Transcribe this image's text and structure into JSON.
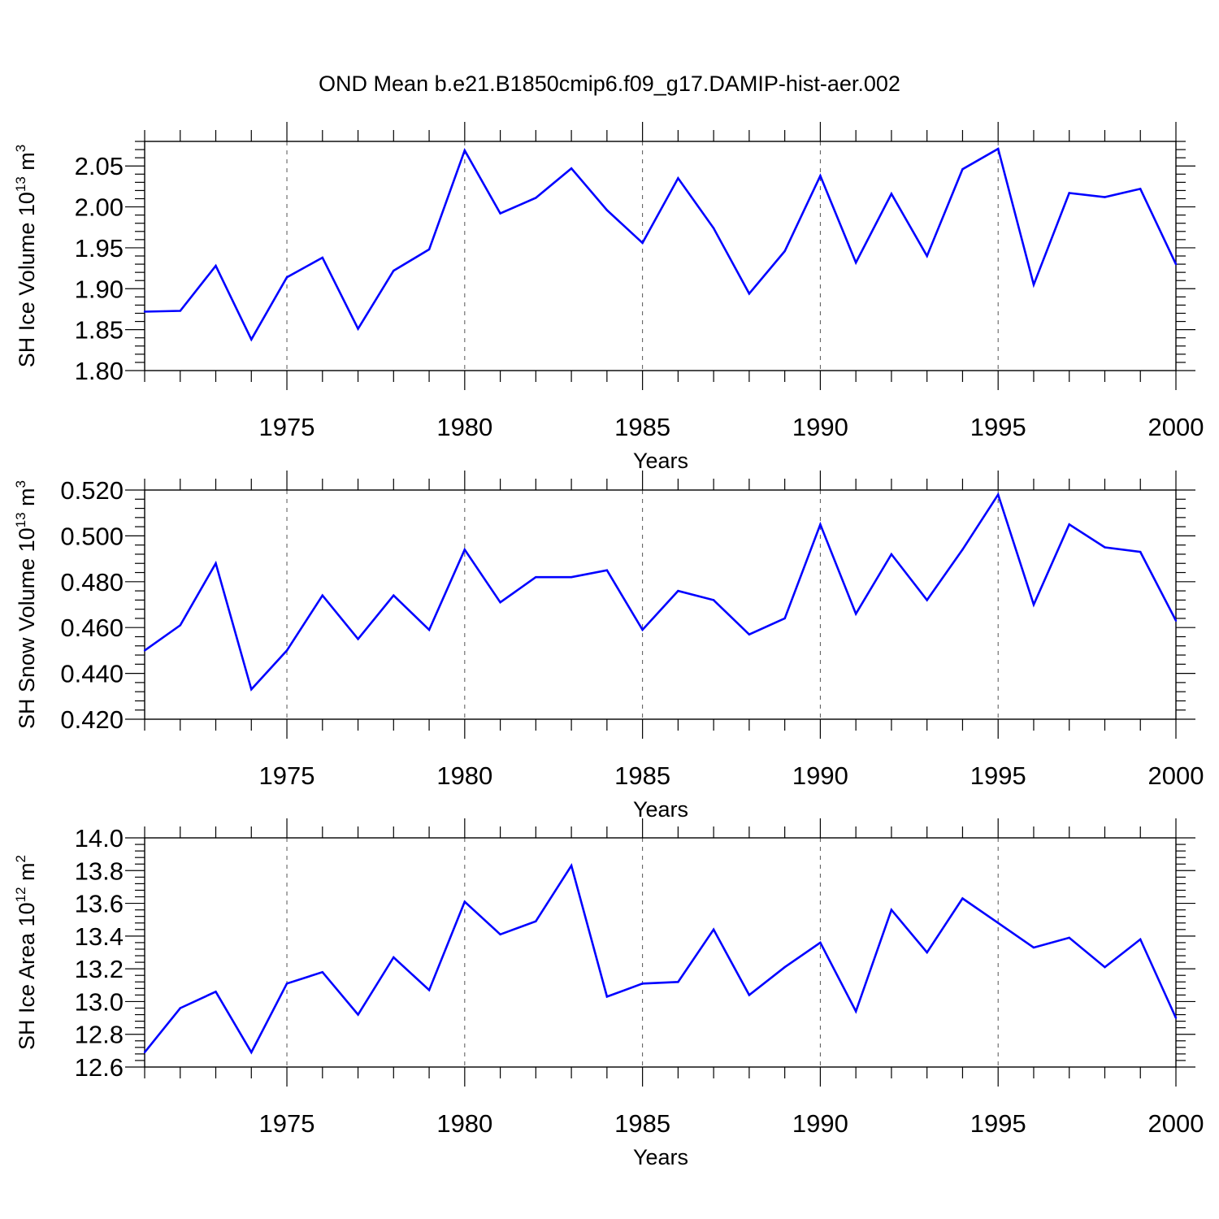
{
  "title": "OND Mean b.e21.B1850cmip6.f09_g17.DAMIP-hist-aer.002",
  "colors": {
    "line": "#0000ff",
    "axis": "#000000",
    "grid": "#555555"
  },
  "chart_data": [
    {
      "type": "line",
      "xlabel": "Years",
      "ylabel": {
        "text": "SH Ice Volume 10",
        "exponent": "13",
        "unit": " m",
        "unit_exponent": "3"
      },
      "xlim": [
        1971,
        2000
      ],
      "ylim": [
        1.8,
        2.08
      ],
      "xticks": [
        "1975",
        "1980",
        "1985",
        "1990",
        "1995",
        "2000"
      ],
      "yticks": [
        "1.80",
        "1.85",
        "1.90",
        "1.95",
        "2.00",
        "2.05"
      ],
      "grid": "vertical dashed at major x ticks",
      "x": [
        1971,
        1972,
        1973,
        1974,
        1975,
        1976,
        1977,
        1978,
        1979,
        1980,
        1981,
        1982,
        1983,
        1984,
        1985,
        1986,
        1987,
        1988,
        1989,
        1990,
        1991,
        1992,
        1993,
        1994,
        1995,
        1996,
        1997,
        1998,
        1999,
        2000
      ],
      "values": [
        1.872,
        1.873,
        1.928,
        1.838,
        1.914,
        1.938,
        1.851,
        1.922,
        1.948,
        2.069,
        1.992,
        2.011,
        2.047,
        1.996,
        1.956,
        2.035,
        1.974,
        1.894,
        1.946,
        2.038,
        1.932,
        2.016,
        1.94,
        2.046,
        2.071,
        1.905,
        2.017,
        2.012,
        2.022,
        1.93
      ]
    },
    {
      "type": "line",
      "xlabel": "Years",
      "ylabel": {
        "text": "SH Snow Volume 10",
        "exponent": "13",
        "unit": " m",
        "unit_exponent": "3"
      },
      "xlim": [
        1971,
        2000
      ],
      "ylim": [
        0.42,
        0.52
      ],
      "xticks": [
        "1975",
        "1980",
        "1985",
        "1990",
        "1995",
        "2000"
      ],
      "yticks": [
        "0.420",
        "0.440",
        "0.460",
        "0.480",
        "0.500",
        "0.520"
      ],
      "grid": "vertical dashed at major x ticks",
      "x": [
        1971,
        1972,
        1973,
        1974,
        1975,
        1976,
        1977,
        1978,
        1979,
        1980,
        1981,
        1982,
        1983,
        1984,
        1985,
        1986,
        1987,
        1988,
        1989,
        1990,
        1991,
        1992,
        1993,
        1994,
        1995,
        1996,
        1997,
        1998,
        1999,
        2000
      ],
      "values": [
        0.45,
        0.461,
        0.488,
        0.433,
        0.45,
        0.474,
        0.455,
        0.474,
        0.459,
        0.494,
        0.471,
        0.482,
        0.482,
        0.485,
        0.459,
        0.476,
        0.472,
        0.457,
        0.464,
        0.505,
        0.466,
        0.492,
        0.472,
        0.494,
        0.518,
        0.47,
        0.505,
        0.495,
        0.493,
        0.463
      ]
    },
    {
      "type": "line",
      "xlabel": "Years",
      "ylabel": {
        "text": "SH Ice Area 10",
        "exponent": "12",
        "unit": " m",
        "unit_exponent": "2"
      },
      "xlim": [
        1971,
        2000
      ],
      "ylim": [
        12.6,
        14.0
      ],
      "xticks": [
        "1975",
        "1980",
        "1985",
        "1990",
        "1995",
        "2000"
      ],
      "yticks": [
        "12.6",
        "12.8",
        "13.0",
        "13.2",
        "13.4",
        "13.6",
        "13.8",
        "14.0"
      ],
      "grid": "vertical dashed at major x ticks",
      "x": [
        1971,
        1972,
        1973,
        1974,
        1975,
        1976,
        1977,
        1978,
        1979,
        1980,
        1981,
        1982,
        1983,
        1984,
        1985,
        1986,
        1987,
        1988,
        1989,
        1990,
        1991,
        1992,
        1993,
        1994,
        1995,
        1996,
        1997,
        1998,
        1999,
        2000
      ],
      "values": [
        12.69,
        12.96,
        13.06,
        12.69,
        13.11,
        13.18,
        12.92,
        13.27,
        13.07,
        13.61,
        13.41,
        13.49,
        13.83,
        13.03,
        13.11,
        13.12,
        13.44,
        13.04,
        13.21,
        13.36,
        12.94,
        13.56,
        13.3,
        13.63,
        13.48,
        13.33,
        13.39,
        13.21,
        13.38,
        12.9
      ]
    }
  ]
}
